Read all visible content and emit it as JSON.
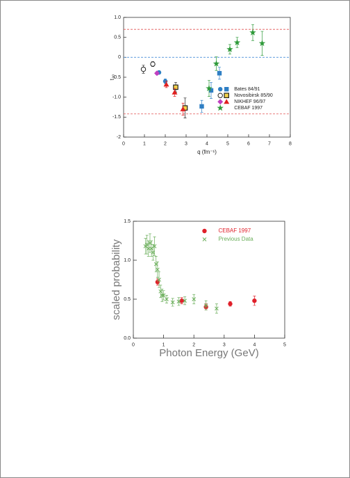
{
  "chart_data": [
    {
      "type": "scatter",
      "x_label": "q (fm⁻¹)",
      "y_label": "t₂₀",
      "xlim": [
        0,
        8
      ],
      "xticks": [
        0,
        1,
        2,
        3,
        4,
        5,
        6,
        7,
        8
      ],
      "ylim": [
        -2,
        1
      ],
      "yticks": [
        {
          "value": 1,
          "label": "1.0"
        },
        0.5,
        0,
        -0.5,
        {
          "value": -1,
          "label": "-1.0"
        },
        -1.5,
        -2
      ],
      "reference_lines": [
        {
          "value": 0.7,
          "color": "#e05050"
        },
        {
          "value": 0,
          "color": "#4a8fd8"
        },
        {
          "value": -1.42,
          "color": "#e05050"
        }
      ],
      "legend": "center right",
      "series": [
        {
          "name": "Bates 84/91",
          "color": "#2f7fc4",
          "markers": [
            "circle",
            "circle",
            "square",
            "square",
            "square"
          ],
          "x": [
            1.7,
            2.0,
            3.75,
            4.2,
            4.6
          ],
          "values": [
            -0.38,
            -0.6,
            -1.23,
            -0.83,
            -0.4
          ],
          "errors": [
            0.04,
            0.06,
            0.15,
            0.2,
            0.15
          ]
        },
        {
          "name": "Novosibirsk 85/90",
          "color": "#222222",
          "markers": [
            "open-circle",
            "open-circle",
            "open-square",
            "open-square"
          ],
          "x": [
            0.95,
            1.4,
            2.5,
            2.95
          ],
          "values": [
            -0.3,
            -0.17,
            -0.75,
            -1.27
          ],
          "errors": [
            0.1,
            0.06,
            0.12,
            0.25
          ]
        },
        {
          "name": "NIKHEF 96/97",
          "colors": [
            "#c040c0",
            "#e02020",
            "#e02020",
            "#e02020"
          ],
          "markers": [
            "diamond",
            "triangle",
            "triangle",
            "triangle"
          ],
          "x": [
            1.6,
            2.05,
            2.45,
            2.85
          ],
          "values": [
            -0.4,
            -0.68,
            -0.88,
            -1.3
          ],
          "errors": [
            0.04,
            0.08,
            0.1,
            0.15
          ]
        },
        {
          "name": "CEBAF 1997",
          "color": "#2f9a3a",
          "markers": [
            "star",
            "star",
            "star",
            "star",
            "star",
            "star"
          ],
          "x": [
            4.1,
            4.45,
            5.1,
            5.45,
            6.2,
            6.65
          ],
          "values": [
            -0.78,
            -0.16,
            0.2,
            0.37,
            0.62,
            0.35
          ],
          "errors": [
            0.2,
            0.17,
            0.12,
            0.13,
            0.2,
            0.3
          ]
        }
      ]
    },
    {
      "type": "scatter",
      "x_label": "Photon Energy (GeV)",
      "y_label": "scaled probability",
      "xlim": [
        0,
        5
      ],
      "xticks": [
        0,
        1,
        2,
        3,
        4,
        5
      ],
      "ylim": [
        0,
        1.5
      ],
      "yticks": [
        {
          "value": 0,
          "label": "0.0"
        },
        0.5,
        {
          "value": 1,
          "label": "1.0"
        },
        1.5
      ],
      "legend": "upper right",
      "series": [
        {
          "name": "CEBAF 1997",
          "color": "#e0202a",
          "markers": [
            "circle",
            "circle",
            "circle",
            "circle",
            "circle"
          ],
          "x": [
            0.8,
            1.6,
            2.4,
            3.2,
            4.0
          ],
          "values": [
            0.72,
            0.48,
            0.4,
            0.44,
            0.48
          ],
          "errors": [
            0.04,
            0.04,
            0.04,
            0.03,
            0.06
          ]
        },
        {
          "name": "Previous Data",
          "color": "#6aae5a",
          "markers": [
            "x",
            "x",
            "x",
            "x",
            "x",
            "x",
            "x",
            "x",
            "x",
            "x",
            "x",
            "x",
            "x",
            "x",
            "x",
            "x",
            "x",
            "x",
            "x",
            "x"
          ],
          "x": [
            0.4,
            0.45,
            0.5,
            0.55,
            0.6,
            0.65,
            0.7,
            0.75,
            0.8,
            0.85,
            0.9,
            0.95,
            1.0,
            1.1,
            1.3,
            1.5,
            1.7,
            2.0,
            2.4,
            2.75
          ],
          "values": [
            1.18,
            1.2,
            1.15,
            1.22,
            1.15,
            1.1,
            1.18,
            0.95,
            0.88,
            0.75,
            0.6,
            0.55,
            0.55,
            0.5,
            0.46,
            0.47,
            0.48,
            0.5,
            0.42,
            0.38
          ],
          "errors": [
            0.1,
            0.12,
            0.1,
            0.12,
            0.1,
            0.1,
            0.12,
            0.1,
            0.1,
            0.1,
            0.08,
            0.08,
            0.06,
            0.05,
            0.05,
            0.05,
            0.05,
            0.06,
            0.06,
            0.06
          ]
        }
      ]
    }
  ]
}
